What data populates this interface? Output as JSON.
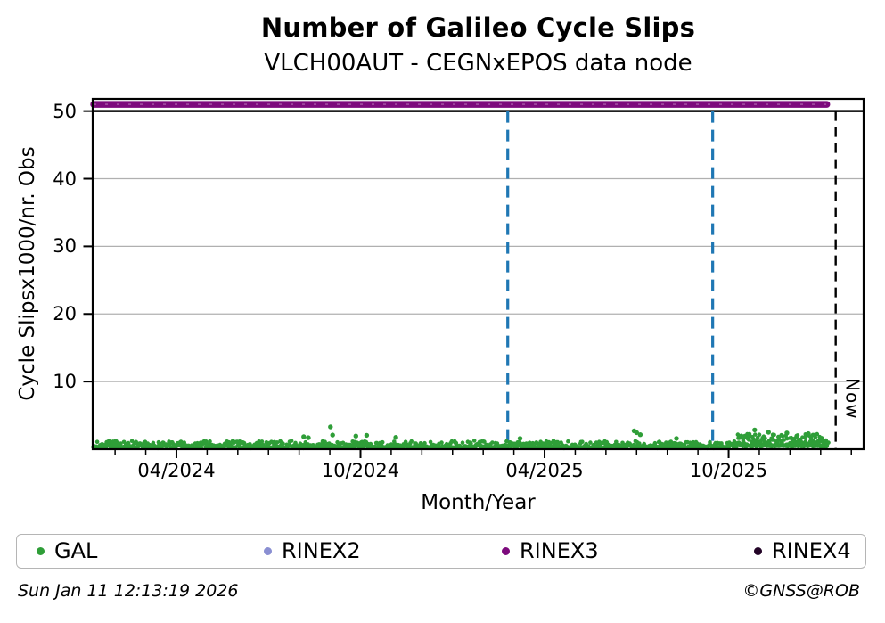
{
  "title": "Number of Galileo Cycle Slips",
  "subtitle": "VLCH00AUT - CEGNxEPOS data node",
  "footer": {
    "timestamp": "Sun Jan 11 12:13:19 2026",
    "credit": "©GNSS@ROB"
  },
  "legend": {
    "items": [
      {
        "label": "GAL",
        "color": "#2f9e38"
      },
      {
        "label": "RINEX2",
        "color": "#8a8fd2"
      },
      {
        "label": "RINEX3",
        "color": "#7d0a7d"
      },
      {
        "label": "RINEX4",
        "color": "#230427"
      }
    ]
  },
  "chart_data": {
    "type": "scatter",
    "title": "Number of Galileo Cycle Slips",
    "subtitle": "VLCH00AUT - CEGNxEPOS data node",
    "xlabel": "Month/Year",
    "ylabel": "Cycle Slipsx1000/nr. Obs",
    "x_axis": {
      "unit": "months since 2024-01-01",
      "range": [
        0.27,
        25.4
      ],
      "major_ticks": [
        {
          "m": 3,
          "label": "04/2024"
        },
        {
          "m": 9,
          "label": "10/2024"
        },
        {
          "m": 15,
          "label": "04/2025"
        },
        {
          "m": 21,
          "label": "10/2025"
        }
      ],
      "minor_tick_step_months": 1
    },
    "y_axis": {
      "range": [
        0,
        51.8
      ],
      "ticks": [
        10,
        20,
        30,
        40,
        50
      ],
      "gridlines": [
        10,
        20,
        30,
        40
      ],
      "grid_color": "#b0b0b0"
    },
    "threshold_line": {
      "y": 50,
      "color": "#000000",
      "style": "solid"
    },
    "event_lines": [
      {
        "x_month": 13.8,
        "y_from": 0,
        "y_to": 50,
        "color": "#1f77b4",
        "style": "dashed"
      },
      {
        "x_month": 20.48,
        "y_from": 0,
        "y_to": 50,
        "color": "#1f77b4",
        "style": "dashed"
      }
    ],
    "now_line": {
      "x_month": 24.49,
      "y_from": 0,
      "y_to": 50,
      "label": "Now",
      "color": "#000000",
      "style": "dashed"
    },
    "series": [
      {
        "name": "GAL",
        "type": "scatter_band",
        "color": "#2f9e38",
        "marker_radius_px": 2.3,
        "seed": 7,
        "band_segments": [
          {
            "from": 0.3,
            "to": 21.3,
            "base": 0.15,
            "spread": 0.95,
            "points_per_month": 48
          },
          {
            "from": 21.3,
            "to": 24.25,
            "base": 0.35,
            "spread": 1.8,
            "points_per_month": 85
          }
        ],
        "spikes": [
          [
            7.15,
            1.85
          ],
          [
            7.3,
            1.7
          ],
          [
            8.02,
            3.3
          ],
          [
            8.09,
            2.1
          ],
          [
            8.85,
            1.95
          ],
          [
            9.2,
            2.05
          ],
          [
            10.15,
            1.75
          ],
          [
            14.2,
            1.6
          ],
          [
            17.92,
            2.7
          ],
          [
            18.0,
            2.45
          ],
          [
            18.12,
            2.15
          ],
          [
            19.3,
            1.6
          ],
          [
            21.85,
            2.85
          ],
          [
            22.3,
            2.5
          ],
          [
            22.9,
            2.4
          ],
          [
            23.6,
            2.3
          ]
        ]
      },
      {
        "name": "RINEX2",
        "type": "scatter",
        "color": "#8a8fd2",
        "points": []
      },
      {
        "name": "RINEX3",
        "type": "line_band",
        "color": "#7d0a7d",
        "y": 51,
        "x_start": 0.3,
        "x_end": 24.2,
        "thickness_px": 7.5
      },
      {
        "name": "RINEX4",
        "type": "scatter",
        "color": "#230427",
        "points": []
      }
    ],
    "legend_entries": [
      "GAL",
      "RINEX2",
      "RINEX3",
      "RINEX4"
    ],
    "legend_position": "bottom",
    "grid": "horizontal-only"
  }
}
